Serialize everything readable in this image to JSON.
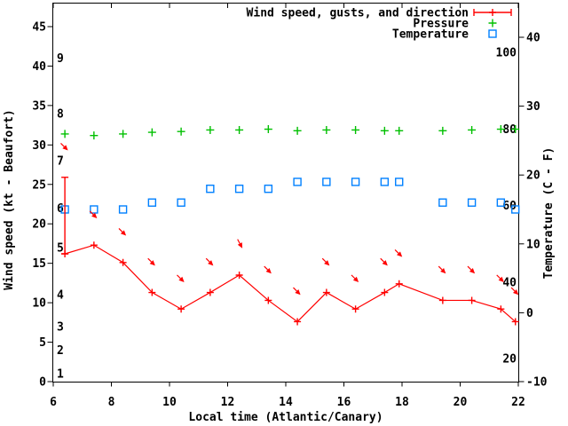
{
  "page": {
    "background": "#ffffff"
  },
  "colors": {
    "wind": "#ff0000",
    "pressure": "#00c000",
    "temperature": "#0080ff",
    "axis": "#000000"
  },
  "chart_data": {
    "type": "line",
    "title": "",
    "xlabel": "Local time (Atlantic/Canary)",
    "ylabel_left": "Wind speed (kt - Beaufort)",
    "ylabel_right": "Temperature (C - F)",
    "grid": false,
    "legend_position": "top-right-inside",
    "x_range": [
      6,
      22
    ],
    "x_ticks": [
      6,
      8,
      10,
      12,
      14,
      16,
      18,
      20,
      22
    ],
    "y_left_ticks_kt": [
      0,
      5,
      10,
      15,
      20,
      25,
      30,
      35,
      40,
      45
    ],
    "y_left_range_kt": [
      0,
      48
    ],
    "beaufort_scale_labels": [
      {
        "label": "1",
        "kt": 1
      },
      {
        "label": "2",
        "kt": 4
      },
      {
        "label": "3",
        "kt": 7
      },
      {
        "label": "4",
        "kt": 11
      },
      {
        "label": "5",
        "kt": 17
      },
      {
        "label": "6",
        "kt": 22
      },
      {
        "label": "7",
        "kt": 28
      },
      {
        "label": "8",
        "kt": 34
      },
      {
        "label": "9",
        "kt": 41
      }
    ],
    "y_right_ticks_c": [
      -10,
      0,
      10,
      20,
      30,
      40
    ],
    "y_right_range_c": [
      -10,
      45
    ],
    "fahrenheit_scale_labels": [
      {
        "label": "20",
        "f": 20
      },
      {
        "label": "40",
        "f": 40
      },
      {
        "label": "60",
        "f": 60
      },
      {
        "label": "80",
        "f": 80
      },
      {
        "label": "100",
        "f": 100
      }
    ],
    "legend": [
      {
        "label": "Wind speed, gusts, and direction",
        "marker": "errorbar",
        "color": "#ff0000"
      },
      {
        "label": "Pressure",
        "marker": "plus",
        "color": "#00c000"
      },
      {
        "label": "Temperature",
        "marker": "open-square",
        "color": "#0080ff"
      }
    ],
    "x_hours": [
      6.4,
      7.4,
      8.4,
      9.4,
      10.4,
      11.4,
      12.4,
      13.4,
      14.4,
      15.4,
      16.4,
      17.4,
      17.9,
      19.4,
      20.4,
      21.4,
      21.9
    ],
    "series": [
      {
        "name": "Wind speed, gusts, and direction",
        "axis": "left",
        "unit": "kt",
        "color": "#ff0000",
        "marker": "plus",
        "wind_kt": [
          16.2,
          17.3,
          15.1,
          11.3,
          9.2,
          11.3,
          13.5,
          10.3,
          7.6,
          11.3,
          9.2,
          11.3,
          12.4,
          10.3,
          10.3,
          9.2,
          7.6
        ],
        "gust_kt": [
          25.9,
          null,
          null,
          null,
          null,
          null,
          null,
          null,
          null,
          null,
          null,
          null,
          null,
          null,
          null,
          null,
          null
        ],
        "arrow_bearing_deg": [
          135,
          135,
          135,
          135,
          135,
          135,
          152,
          135,
          135,
          135,
          135,
          135,
          135,
          135,
          135,
          135,
          135
        ]
      },
      {
        "name": "Pressure",
        "axis": "left-as-plotted",
        "unit": "kt-equivalent (true pressure axis not shown)",
        "color": "#00c000",
        "marker": "plus",
        "values": [
          31.4,
          31.2,
          31.4,
          31.6,
          31.7,
          31.9,
          31.9,
          32.0,
          31.8,
          31.9,
          31.9,
          31.8,
          31.8,
          31.8,
          31.9,
          32.0,
          32.0
        ]
      },
      {
        "name": "Temperature",
        "axis": "right",
        "unit": "C",
        "color": "#0080ff",
        "marker": "open-square",
        "values": [
          15,
          15,
          15,
          16,
          16,
          18,
          18,
          18,
          19,
          19,
          19,
          19,
          19,
          16,
          16,
          16,
          15
        ]
      }
    ]
  }
}
